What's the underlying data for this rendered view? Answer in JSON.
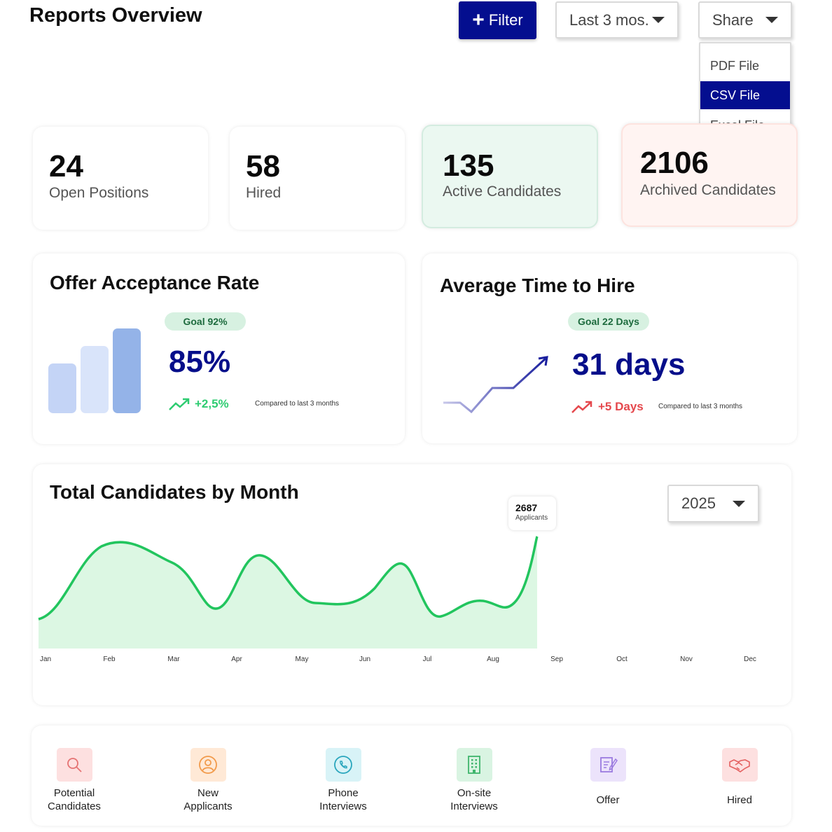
{
  "header": {
    "title": "Reports Overview",
    "filter_label": "Filter",
    "period_value": "Last 3 mos.",
    "share_label": "Share"
  },
  "share_menu": {
    "items": [
      "PDF File",
      "CSV File",
      "Excel File"
    ],
    "selected": "CSV File"
  },
  "kpis": [
    {
      "value": "24",
      "label": "Open Positions"
    },
    {
      "value": "58",
      "label": "Hired"
    },
    {
      "value": "135",
      "label": "Active Candidates"
    },
    {
      "value": "2106",
      "label": "Archived Candidates"
    }
  ],
  "offer_acceptance": {
    "title": "Offer Acceptance Rate",
    "goal": "Goal 92%",
    "value": "85%",
    "delta": "+2,5%",
    "compare": "Compared to last 3 months"
  },
  "time_to_hire": {
    "title": "Average Time to Hire",
    "goal": "Goal 22 Days",
    "value": "31 days",
    "delta": "+5 Days",
    "compare": "Compared to last 3 months"
  },
  "candidates_chart": {
    "title": "Total Candidates by Month",
    "year": "2025",
    "tooltip_value": "2687",
    "tooltip_label": "Applicants"
  },
  "chart_data": {
    "type": "area",
    "x": [
      "Jan",
      "Feb",
      "Mar",
      "Apr",
      "May",
      "Jun",
      "Jul",
      "Aug",
      "Sep",
      "Oct",
      "Nov",
      "Dec"
    ],
    "annotations": [
      {
        "x": "Sep",
        "value": 2687,
        "label": "Applicants"
      }
    ]
  },
  "stages": [
    {
      "label": "Potential\nCandidates",
      "icon": "search-icon"
    },
    {
      "label": "New\nApplicants",
      "icon": "user-icon"
    },
    {
      "label": "Phone\nInterviews",
      "icon": "phone-icon"
    },
    {
      "label": "On-site\nInterviews",
      "icon": "building-icon"
    },
    {
      "label": "Offer",
      "icon": "document-edit-icon"
    },
    {
      "label": "Hired",
      "icon": "handshake-icon"
    }
  ],
  "colors": {
    "primary": "#040e8f",
    "chart_line": "#22c55e",
    "chart_fill": "#dcf7e3",
    "positive": "#2ecc71",
    "negative": "#e5484d"
  }
}
